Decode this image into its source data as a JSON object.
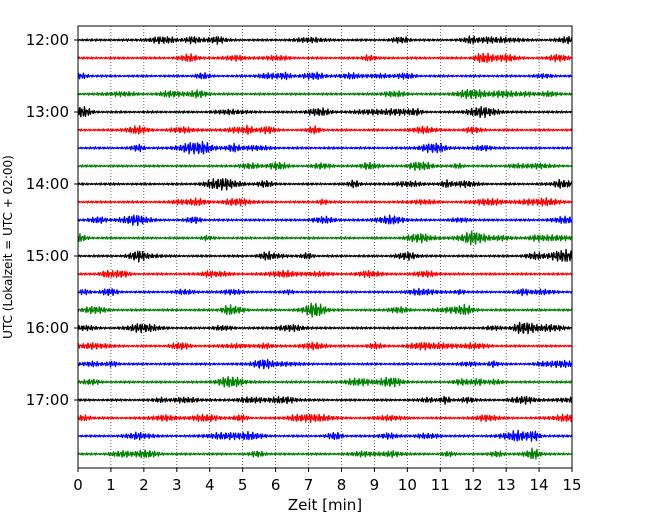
{
  "chart_data": {
    "type": "line",
    "title": "",
    "xlabel": "Zeit  [min]",
    "ylabel": "UTC (Lokalzeit = UTC + 02:00)",
    "xlim": [
      0,
      15
    ],
    "x_ticks": [
      "0",
      "1",
      "2",
      "3",
      "4",
      "5",
      "6",
      "7",
      "8",
      "9",
      "10",
      "11",
      "12",
      "13",
      "14",
      "15"
    ],
    "y_tick_labels": [
      "12:00",
      "13:00",
      "14:00",
      "15:00",
      "16:00",
      "17:00"
    ],
    "grid": "vertical dotted at each minute",
    "trace_colors": [
      "#000000",
      "#ff0000",
      "#0000ff",
      "#008000"
    ],
    "series": [
      {
        "start": "12:00",
        "color": "#000000"
      },
      {
        "start": "12:15",
        "color": "#ff0000"
      },
      {
        "start": "12:30",
        "color": "#0000ff"
      },
      {
        "start": "12:45",
        "color": "#008000"
      },
      {
        "start": "13:00",
        "color": "#000000"
      },
      {
        "start": "13:15",
        "color": "#ff0000"
      },
      {
        "start": "13:30",
        "color": "#0000ff"
      },
      {
        "start": "13:45",
        "color": "#008000"
      },
      {
        "start": "14:00",
        "color": "#000000"
      },
      {
        "start": "14:15",
        "color": "#ff0000"
      },
      {
        "start": "14:30",
        "color": "#0000ff"
      },
      {
        "start": "14:45",
        "color": "#008000"
      },
      {
        "start": "15:00",
        "color": "#000000"
      },
      {
        "start": "15:15",
        "color": "#ff0000"
      },
      {
        "start": "15:30",
        "color": "#0000ff"
      },
      {
        "start": "15:45",
        "color": "#008000"
      },
      {
        "start": "16:00",
        "color": "#000000"
      },
      {
        "start": "16:15",
        "color": "#ff0000"
      },
      {
        "start": "16:30",
        "color": "#0000ff"
      },
      {
        "start": "16:45",
        "color": "#008000"
      },
      {
        "start": "17:00",
        "color": "#000000"
      },
      {
        "start": "17:15",
        "color": "#ff0000"
      },
      {
        "start": "17:30",
        "color": "#0000ff"
      },
      {
        "start": "17:45",
        "color": "#008000"
      }
    ]
  }
}
